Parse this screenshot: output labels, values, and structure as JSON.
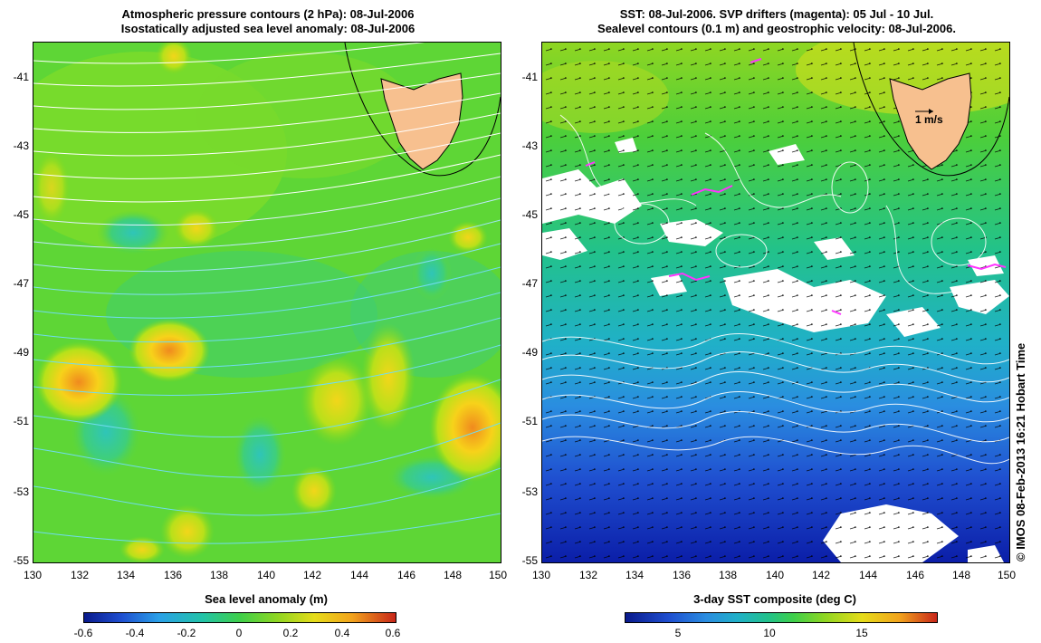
{
  "left_panel": {
    "title_line1": "Atmospheric pressure contours (2 hPa): 08-Jul-2006",
    "title_line2": "Isostatically adjusted sea level anomaly: 08-Jul-2006",
    "colorbar_title": "Sea level anomaly (m)",
    "colorbar_ticks": [
      "-0.6",
      "-0.4",
      "-0.2",
      "0",
      "0.2",
      "0.4",
      "0.6"
    ]
  },
  "right_panel": {
    "title_line1": "SST: 08-Jul-2006. SVP drifters (magenta): 05 Jul - 10 Jul.",
    "title_line2": "Sealevel contours (0.1 m) and geostrophic velocity: 08-Jul-2006.",
    "colorbar_title": "3-day SST composite (deg C)",
    "colorbar_ticks": [
      "5",
      "10",
      "15"
    ],
    "scale_label": "1 m/s"
  },
  "axes": {
    "lat_ticks": [
      "-41",
      "-43",
      "-45",
      "-47",
      "-49",
      "-51",
      "-53",
      "-55"
    ],
    "lon_ticks": [
      "130",
      "132",
      "134",
      "136",
      "138",
      "140",
      "142",
      "144",
      "146",
      "148",
      "150"
    ]
  },
  "copyright": "© IMOS 08-Feb-2013 16:21 Hobart Time",
  "colors": {
    "land": "#f7c08f",
    "cloud": "#ffffff",
    "drifter": "#ff33ff"
  }
}
